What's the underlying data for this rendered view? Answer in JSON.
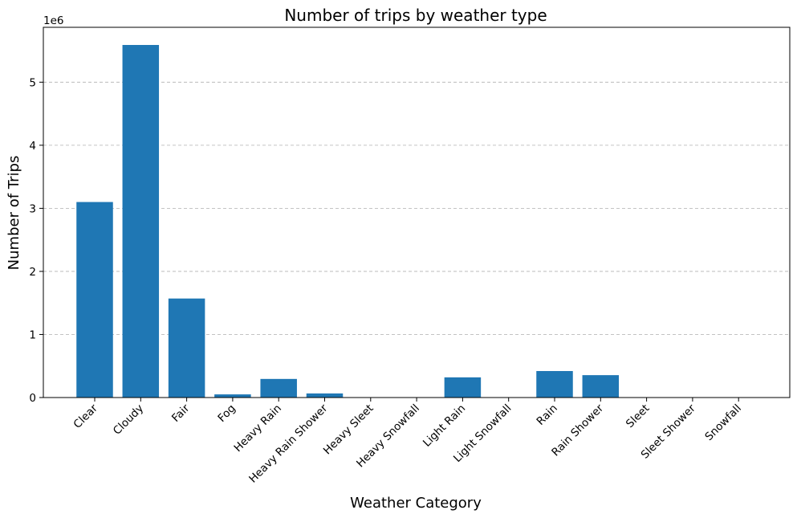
{
  "chart_data": {
    "type": "bar",
    "title": "Number of trips by weather type",
    "xlabel": "Weather Category",
    "ylabel": "Number of Trips",
    "y_offset_text": "1e6",
    "categories": [
      "Clear",
      "Cloudy",
      "Fair",
      "Fog",
      "Heavy Rain",
      "Heavy Rain Shower",
      "Heavy Sleet",
      "Heavy Snowfall",
      "Light Rain",
      "Light Snowfall",
      "Rain",
      "Rain Shower",
      "Sleet",
      "Sleet Shower",
      "Snowfall"
    ],
    "values": [
      3100000,
      5590000,
      1570000,
      50000,
      295000,
      65000,
      0,
      0,
      320000,
      0,
      420000,
      355000,
      0,
      0,
      0
    ],
    "ylim": [
      0,
      5870000
    ],
    "yticks": [
      0,
      1,
      2,
      3,
      4,
      5
    ],
    "grid": "y-dashed",
    "bar_color": "#1f77b4"
  }
}
